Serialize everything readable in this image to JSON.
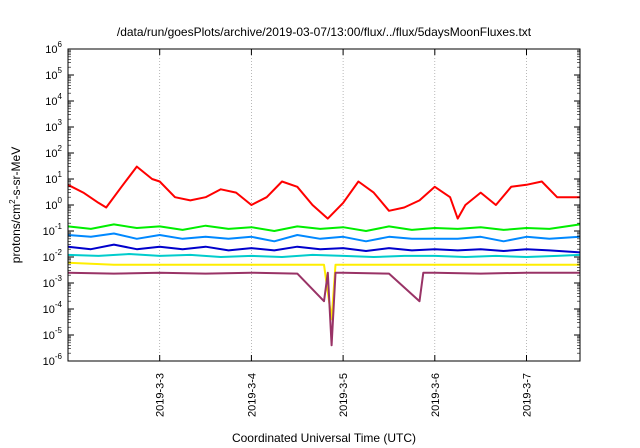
{
  "chart_data": {
    "type": "line",
    "title": "/data/run/goesPlots/archive/2019-03-07/13:00/flux/../flux/5daysMoonFluxes.txt",
    "xlabel": "Coordinated Universal Time (UTC)",
    "ylabel_parts": {
      "base": "protons/cm",
      "sup": "2",
      "rest": "-s-sr-MeV"
    },
    "yscale": "log",
    "ylim": [
      1e-06,
      1000000.0
    ],
    "y_ticks": [
      {
        "mant": "10",
        "exp": "-6",
        "v": -6
      },
      {
        "mant": "10",
        "exp": "-5",
        "v": -5
      },
      {
        "mant": "10",
        "exp": "-4",
        "v": -4
      },
      {
        "mant": "10",
        "exp": "-3",
        "v": -3
      },
      {
        "mant": "10",
        "exp": "-2",
        "v": -2
      },
      {
        "mant": "10",
        "exp": "-1",
        "v": -1
      },
      {
        "mant": "10",
        "exp": "0",
        "v": 0
      },
      {
        "mant": "10",
        "exp": "1",
        "v": 1
      },
      {
        "mant": "10",
        "exp": "2",
        "v": 2
      },
      {
        "mant": "10",
        "exp": "3",
        "v": 3
      },
      {
        "mant": "10",
        "exp": "4",
        "v": 4
      },
      {
        "mant": "10",
        "exp": "5",
        "v": 5
      },
      {
        "mant": "10",
        "exp": "6",
        "v": 6
      }
    ],
    "xlim": [
      "2019-03-02 00:00",
      "2019-03-07 14:00"
    ],
    "x_ticks": [
      "2019-3-3",
      "2019-3-4",
      "2019-3-5",
      "2019-3-6",
      "2019-3-7"
    ],
    "series": [
      {
        "color": "#ff0000",
        "x": [
          "2019-03-02 00:00",
          "2019-03-02 04:00",
          "2019-03-02 08:00",
          "2019-03-02 10:00",
          "2019-03-02 14:00",
          "2019-03-02 18:00",
          "2019-03-02 22:00",
          "2019-03-03 00:00",
          "2019-03-03 04:00",
          "2019-03-03 08:00",
          "2019-03-03 12:00",
          "2019-03-03 16:00",
          "2019-03-03 20:00",
          "2019-03-04 00:00",
          "2019-03-04 04:00",
          "2019-03-04 08:00",
          "2019-03-04 12:00",
          "2019-03-04 16:00",
          "2019-03-04 20:00",
          "2019-03-05 00:00",
          "2019-03-05 04:00",
          "2019-03-05 08:00",
          "2019-03-05 12:00",
          "2019-03-05 16:00",
          "2019-03-05 20:00",
          "2019-03-06 00:00",
          "2019-03-06 04:00",
          "2019-03-06 06:00",
          "2019-03-06 08:00",
          "2019-03-06 12:00",
          "2019-03-06 16:00",
          "2019-03-06 20:00",
          "2019-03-07 00:00",
          "2019-03-07 04:00",
          "2019-03-07 08:00",
          "2019-03-07 14:00"
        ],
        "y": [
          6,
          3,
          1.2,
          0.8,
          5,
          30,
          10,
          8,
          2,
          1.5,
          2,
          4,
          3,
          1,
          2,
          8,
          5,
          1,
          0.3,
          1.2,
          8,
          3,
          0.6,
          0.8,
          1.5,
          5,
          2,
          0.3,
          1,
          3,
          1,
          5,
          6,
          8,
          2,
          2
        ]
      },
      {
        "color": "#00ee00",
        "x": [
          "2019-03-02 00:00",
          "2019-03-02 06:00",
          "2019-03-02 12:00",
          "2019-03-02 18:00",
          "2019-03-03 00:00",
          "2019-03-03 06:00",
          "2019-03-03 12:00",
          "2019-03-03 18:00",
          "2019-03-04 00:00",
          "2019-03-04 06:00",
          "2019-03-04 12:00",
          "2019-03-04 18:00",
          "2019-03-05 00:00",
          "2019-03-05 06:00",
          "2019-03-05 12:00",
          "2019-03-05 18:00",
          "2019-03-06 00:00",
          "2019-03-06 06:00",
          "2019-03-06 12:00",
          "2019-03-06 18:00",
          "2019-03-07 00:00",
          "2019-03-07 06:00",
          "2019-03-07 14:00"
        ],
        "y": [
          0.15,
          0.12,
          0.18,
          0.13,
          0.15,
          0.11,
          0.16,
          0.12,
          0.14,
          0.1,
          0.15,
          0.12,
          0.14,
          0.1,
          0.15,
          0.11,
          0.13,
          0.12,
          0.14,
          0.11,
          0.13,
          0.12,
          0.18
        ]
      },
      {
        "color": "#0088ff",
        "x": [
          "2019-03-02 00:00",
          "2019-03-02 06:00",
          "2019-03-02 12:00",
          "2019-03-02 18:00",
          "2019-03-03 00:00",
          "2019-03-03 06:00",
          "2019-03-03 12:00",
          "2019-03-03 18:00",
          "2019-03-04 00:00",
          "2019-03-04 06:00",
          "2019-03-04 12:00",
          "2019-03-04 18:00",
          "2019-03-05 00:00",
          "2019-03-05 06:00",
          "2019-03-05 12:00",
          "2019-03-05 18:00",
          "2019-03-06 00:00",
          "2019-03-06 06:00",
          "2019-03-06 12:00",
          "2019-03-06 18:00",
          "2019-03-07 00:00",
          "2019-03-07 06:00",
          "2019-03-07 14:00"
        ],
        "y": [
          0.07,
          0.06,
          0.08,
          0.05,
          0.07,
          0.05,
          0.06,
          0.05,
          0.06,
          0.04,
          0.07,
          0.05,
          0.06,
          0.04,
          0.06,
          0.05,
          0.05,
          0.05,
          0.06,
          0.04,
          0.06,
          0.05,
          0.06
        ]
      },
      {
        "color": "#0000cc",
        "x": [
          "2019-03-02 00:00",
          "2019-03-02 06:00",
          "2019-03-02 12:00",
          "2019-03-02 18:00",
          "2019-03-03 00:00",
          "2019-03-03 06:00",
          "2019-03-03 12:00",
          "2019-03-03 18:00",
          "2019-03-04 00:00",
          "2019-03-04 06:00",
          "2019-03-04 12:00",
          "2019-03-04 18:00",
          "2019-03-05 00:00",
          "2019-03-05 06:00",
          "2019-03-05 12:00",
          "2019-03-05 18:00",
          "2019-03-06 00:00",
          "2019-03-06 06:00",
          "2019-03-06 12:00",
          "2019-03-06 18:00",
          "2019-03-07 00:00",
          "2019-03-07 06:00",
          "2019-03-07 14:00"
        ],
        "y": [
          0.025,
          0.02,
          0.03,
          0.02,
          0.025,
          0.02,
          0.025,
          0.018,
          0.022,
          0.018,
          0.025,
          0.02,
          0.022,
          0.017,
          0.022,
          0.018,
          0.02,
          0.018,
          0.02,
          0.017,
          0.02,
          0.018,
          0.015
        ]
      },
      {
        "color": "#00cccc",
        "x": [
          "2019-03-02 00:00",
          "2019-03-02 08:00",
          "2019-03-02 16:00",
          "2019-03-03 00:00",
          "2019-03-03 08:00",
          "2019-03-03 16:00",
          "2019-03-04 00:00",
          "2019-03-04 08:00",
          "2019-03-04 16:00",
          "2019-03-05 00:00",
          "2019-03-05 08:00",
          "2019-03-05 16:00",
          "2019-03-06 00:00",
          "2019-03-06 08:00",
          "2019-03-06 16:00",
          "2019-03-07 00:00",
          "2019-03-07 08:00",
          "2019-03-07 14:00"
        ],
        "y": [
          0.012,
          0.011,
          0.013,
          0.011,
          0.012,
          0.01,
          0.011,
          0.01,
          0.012,
          0.011,
          0.01,
          0.011,
          0.011,
          0.01,
          0.011,
          0.01,
          0.011,
          0.012
        ]
      },
      {
        "color": "#ffee00",
        "x": [
          "2019-03-02 00:00",
          "2019-03-02 12:00",
          "2019-03-03 00:00",
          "2019-03-03 12:00",
          "2019-03-04 00:00",
          "2019-03-04 12:00",
          "2019-03-04 19:00",
          "2019-03-04 21:00",
          "2019-03-04 22:00",
          "2019-03-05 00:00",
          "2019-03-05 12:00",
          "2019-03-05 20:00",
          "2019-03-06 00:00",
          "2019-03-06 12:00",
          "2019-03-07 00:00",
          "2019-03-07 14:00"
        ],
        "y": [
          0.006,
          0.005,
          0.005,
          0.005,
          0.005,
          0.005,
          0.005,
          4e-05,
          0.005,
          0.005,
          0.005,
          0.005,
          0.005,
          0.005,
          0.005,
          0.005
        ]
      },
      {
        "color": "#993366",
        "x": [
          "2019-03-02 00:00",
          "2019-03-02 12:00",
          "2019-03-03 00:00",
          "2019-03-03 12:00",
          "2019-03-04 00:00",
          "2019-03-04 12:00",
          "2019-03-04 19:00",
          "2019-03-04 20:00",
          "2019-03-04 21:00",
          "2019-03-04 22:00",
          "2019-03-05 00:00",
          "2019-03-05 12:00",
          "2019-03-05 20:00",
          "2019-03-05 21:00",
          "2019-03-06 00:00",
          "2019-03-06 12:00",
          "2019-03-07 00:00",
          "2019-03-07 14:00"
        ],
        "y": [
          0.0025,
          0.0023,
          0.0025,
          0.0023,
          0.0025,
          0.0023,
          0.0002,
          0.0025,
          4e-06,
          0.0025,
          0.0025,
          0.0023,
          0.0002,
          0.0025,
          0.0025,
          0.0023,
          0.0025,
          0.0025
        ]
      }
    ]
  }
}
